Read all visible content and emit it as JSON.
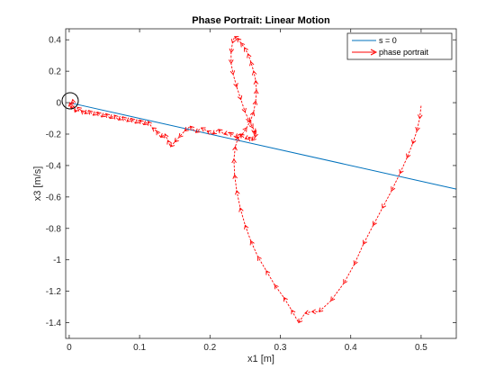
{
  "chart_data": {
    "type": "line",
    "title": "Phase Portrait: Linear Motion",
    "xlabel": "x1 [m]",
    "ylabel": "x3 [m/s]",
    "xlim": [
      -0.005,
      0.55
    ],
    "ylim": [
      -1.5,
      0.47
    ],
    "xticks": [
      0,
      0.1,
      0.2,
      0.3,
      0.4,
      0.5
    ],
    "xtick_labels": [
      "0",
      "0.1",
      "0.2",
      "0.3",
      "0.4",
      "0.5"
    ],
    "yticks": [
      0.4,
      0.2,
      0,
      -0.2,
      -0.4,
      -0.6,
      -0.8,
      -1,
      -1.2,
      -1.4
    ],
    "ytick_labels": [
      "0.4",
      "0.2",
      "0",
      "-0.2",
      "-0.4",
      "-0.6",
      "-0.8",
      "-1",
      "-1.2",
      "-1.4"
    ],
    "grid": false,
    "legend_position": "top-right",
    "series": [
      {
        "name": "s = 0",
        "color": "#0072BD",
        "style": "solid",
        "x": [
          0,
          0.55
        ],
        "y": [
          0,
          -0.55
        ]
      },
      {
        "name": "phase portrait",
        "color": "#FF0000",
        "style": "dashed-quiver",
        "x": [
          0.5,
          0.498,
          0.494,
          0.488,
          0.48,
          0.47,
          0.458,
          0.445,
          0.432,
          0.418,
          0.405,
          0.39,
          0.372,
          0.355,
          0.345,
          0.335,
          0.326,
          0.316,
          0.305,
          0.292,
          0.28,
          0.268,
          0.258,
          0.25,
          0.243,
          0.238,
          0.235,
          0.234,
          0.236,
          0.24,
          0.246,
          0.252,
          0.258,
          0.262,
          0.265,
          0.266,
          0.265,
          0.262,
          0.258,
          0.254,
          0.249,
          0.244,
          0.239,
          0.235,
          0.232,
          0.23,
          0.23,
          0.233,
          0.238,
          0.244,
          0.25,
          0.256,
          0.261,
          0.264,
          0.265,
          0.264,
          0.26,
          0.255,
          0.25,
          0.243,
          0.236,
          0.228,
          0.22,
          0.212,
          0.204,
          0.196,
          0.188,
          0.18,
          0.172,
          0.164,
          0.156,
          0.15,
          0.144,
          0.14,
          0.136,
          0.13,
          0.124,
          0.118,
          0.112,
          0.106,
          0.1,
          0.094,
          0.088,
          0.082,
          0.076,
          0.07,
          0.064,
          0.058,
          0.052,
          0.046,
          0.04,
          0.034,
          0.028,
          0.022,
          0.017,
          0.012,
          0.008,
          0.005,
          0.003,
          0.001
        ],
        "y": [
          -0.02,
          -0.1,
          -0.18,
          -0.26,
          -0.35,
          -0.45,
          -0.56,
          -0.67,
          -0.78,
          -0.9,
          -1.03,
          -1.15,
          -1.26,
          -1.33,
          -1.33,
          -1.34,
          -1.4,
          -1.32,
          -1.24,
          -1.16,
          -1.07,
          -0.98,
          -0.88,
          -0.78,
          -0.67,
          -0.56,
          -0.46,
          -0.36,
          -0.28,
          -0.22,
          -0.2,
          -0.16,
          -0.11,
          -0.06,
          0.01,
          0.08,
          0.14,
          0.2,
          0.26,
          0.31,
          0.35,
          0.38,
          0.41,
          0.42,
          0.38,
          0.32,
          0.25,
          0.18,
          0.1,
          0.02,
          -0.06,
          -0.12,
          -0.16,
          -0.19,
          -0.2,
          -0.22,
          -0.24,
          -0.22,
          -0.23,
          -0.2,
          -0.22,
          -0.19,
          -0.2,
          -0.17,
          -0.2,
          -0.18,
          -0.16,
          -0.19,
          -0.15,
          -0.18,
          -0.22,
          -0.25,
          -0.28,
          -0.24,
          -0.2,
          -0.22,
          -0.18,
          -0.16,
          -0.12,
          -0.14,
          -0.11,
          -0.13,
          -0.1,
          -0.12,
          -0.09,
          -0.11,
          -0.08,
          -0.1,
          -0.07,
          -0.09,
          -0.06,
          -0.08,
          -0.05,
          -0.07,
          -0.05,
          -0.03,
          -0.06,
          0.02,
          -0.04,
          0.0
        ]
      }
    ]
  }
}
